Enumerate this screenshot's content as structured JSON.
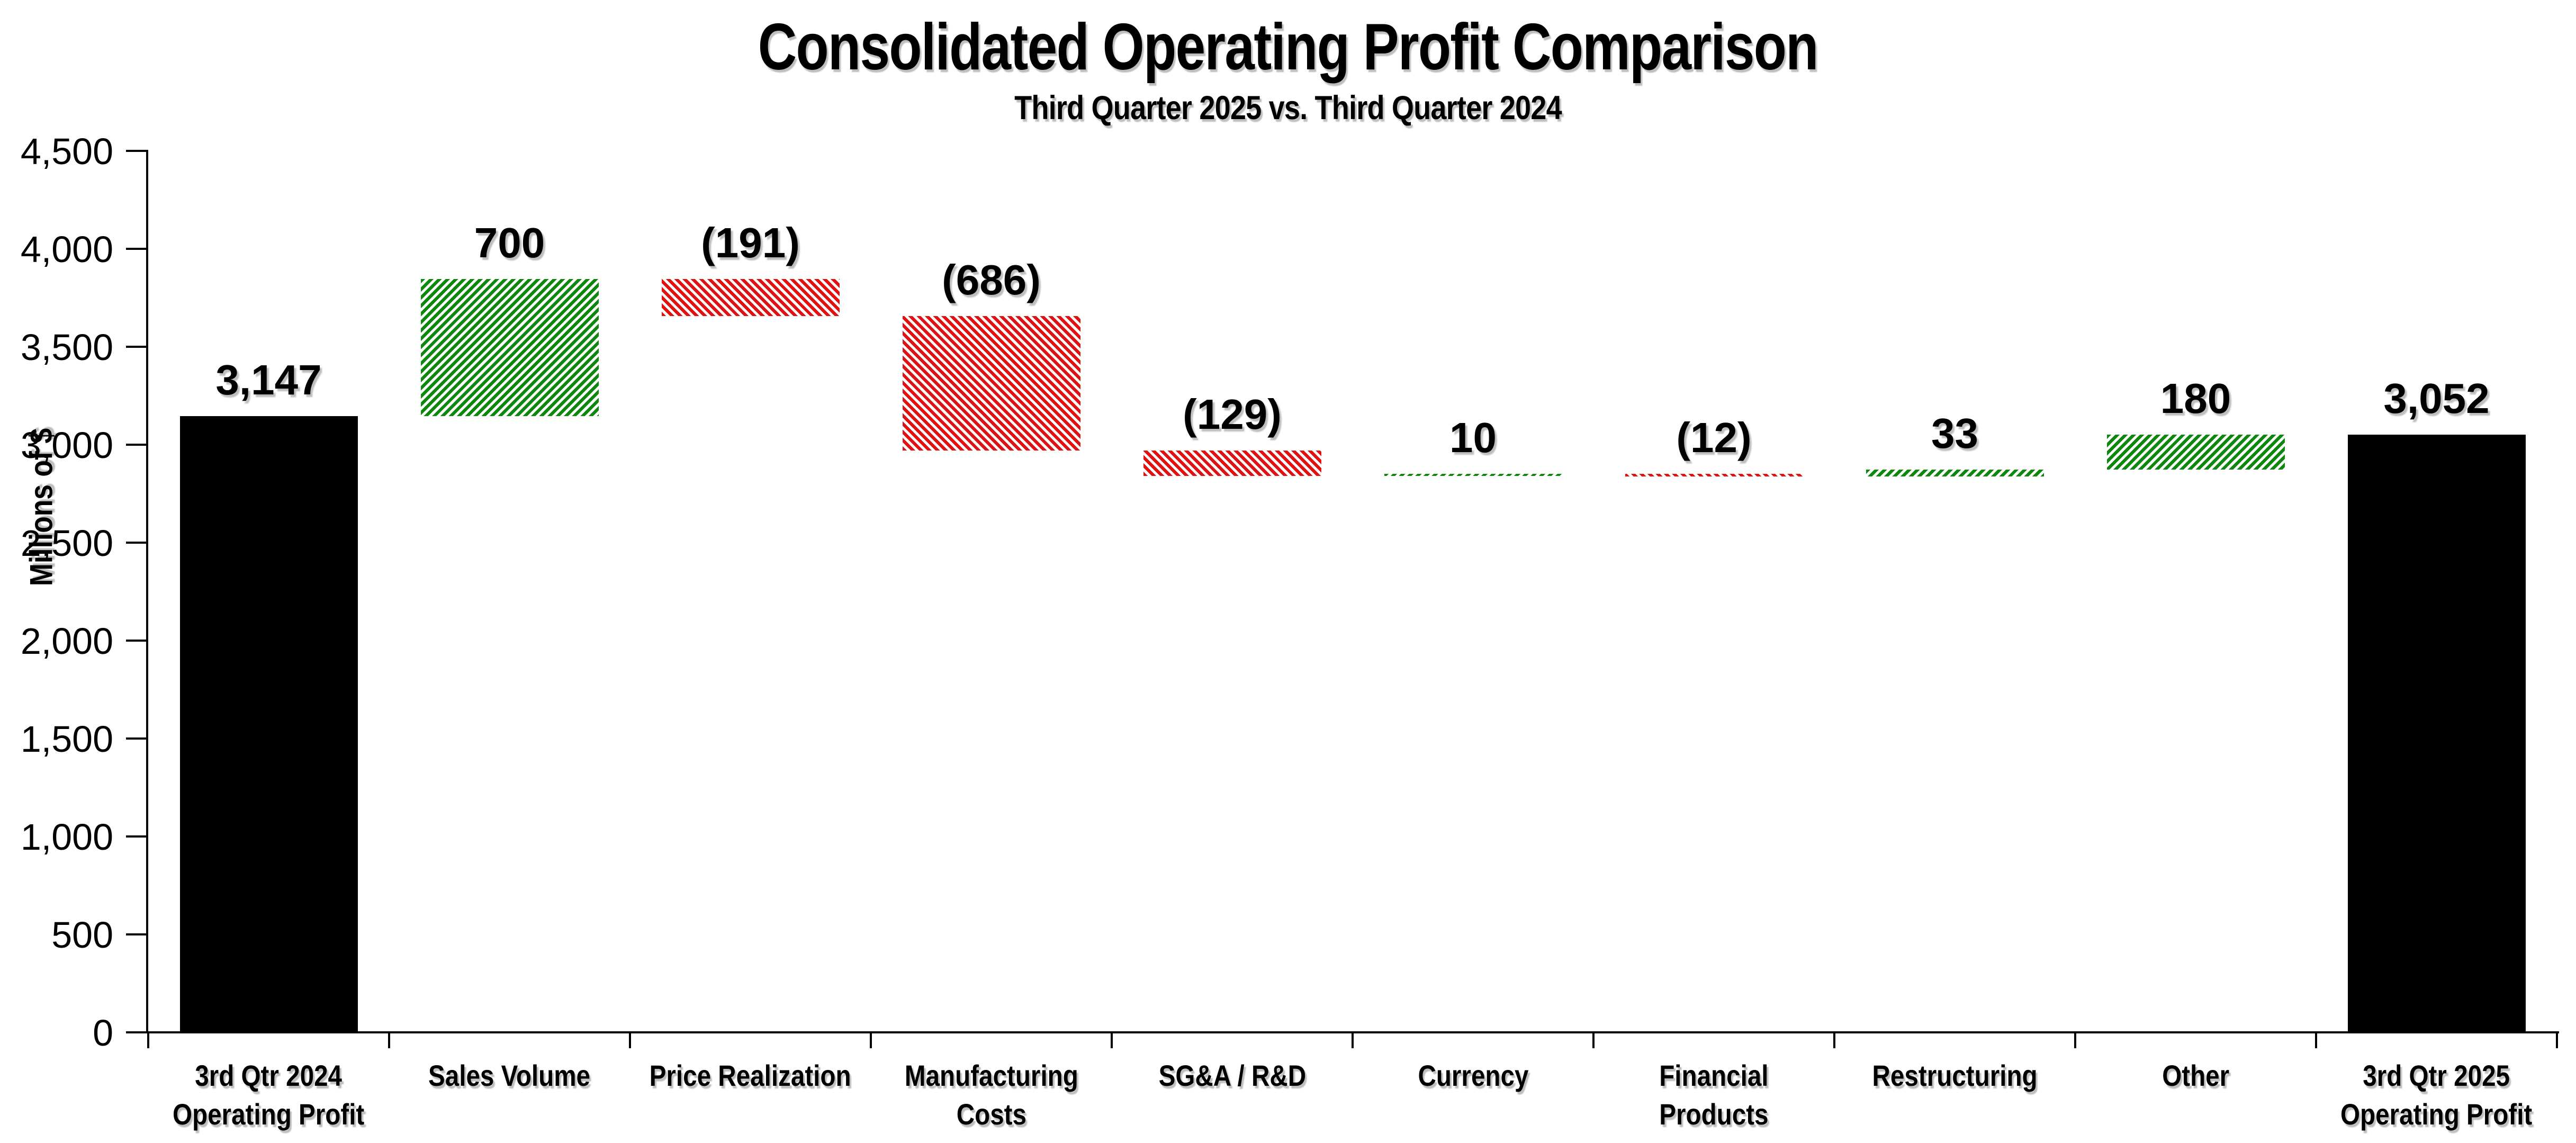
{
  "chart_data": {
    "type": "bar",
    "variant": "waterfall",
    "title": "Consolidated Operating Profit Comparison",
    "subtitle": "Third Quarter 2025 vs. Third Quarter 2024",
    "ylabel": "Millions of $",
    "ylim": [
      0,
      4500
    ],
    "ytick_step": 500,
    "ytick_labels": [
      "0",
      "500",
      "1,000",
      "1,500",
      "2,000",
      "2,500",
      "3,000",
      "3,500",
      "4,000",
      "4,500"
    ],
    "grid": false,
    "legend": "none",
    "categories": [
      "3rd Qtr 2024 Operating Profit",
      "Sales Volume",
      "Price Realization",
      "Manufacturing Costs",
      "SG&A / R&D",
      "Currency",
      "Financial Products",
      "Restructuring",
      "Other",
      "3rd Qtr 2025 Operating Profit"
    ],
    "bars": [
      {
        "category": "3rd Qtr 2024 Operating Profit",
        "category_lines": [
          "3rd Qtr 2024",
          "Operating Profit"
        ],
        "value": 3147,
        "label": "3,147",
        "kind": "total"
      },
      {
        "category": "Sales Volume",
        "category_lines": [
          "Sales Volume"
        ],
        "value": 700,
        "label": "700",
        "kind": "favorable"
      },
      {
        "category": "Price Realization",
        "category_lines": [
          "Price Realization"
        ],
        "value": -191,
        "label": "(191)",
        "kind": "unfavorable"
      },
      {
        "category": "Manufacturing Costs",
        "category_lines": [
          "Manufacturing",
          "Costs"
        ],
        "value": -686,
        "label": "(686)",
        "kind": "unfavorable"
      },
      {
        "category": "SG&A / R&D",
        "category_lines": [
          "SG&A / R&D"
        ],
        "value": -129,
        "label": "(129)",
        "kind": "unfavorable"
      },
      {
        "category": "Currency",
        "category_lines": [
          "Currency"
        ],
        "value": 10,
        "label": "10",
        "kind": "favorable"
      },
      {
        "category": "Financial Products",
        "category_lines": [
          "Financial",
          "Products"
        ],
        "value": -12,
        "label": "(12)",
        "kind": "unfavorable"
      },
      {
        "category": "Restructuring",
        "category_lines": [
          "Restructuring"
        ],
        "value": 33,
        "label": "33",
        "kind": "favorable"
      },
      {
        "category": "Other",
        "category_lines": [
          "Other"
        ],
        "value": 180,
        "label": "180",
        "kind": "favorable"
      },
      {
        "category": "3rd Qtr 2025 Operating Profit",
        "category_lines": [
          "3rd Qtr 2025",
          "Operating Profit"
        ],
        "value": 3052,
        "label": "3,052",
        "kind": "total"
      }
    ],
    "colors": {
      "total": "#000000",
      "favorable": "#0E870F",
      "unfavorable": "#DE1212",
      "hatch_background": "#FFFFFF",
      "axis": "#000000"
    },
    "hatch": {
      "favorable_direction": "forward-slash",
      "unfavorable_direction": "back-slash"
    }
  }
}
